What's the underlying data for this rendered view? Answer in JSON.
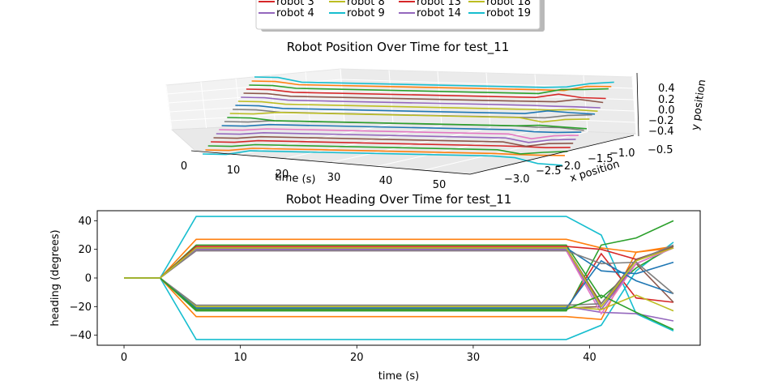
{
  "legend": {
    "entries": [
      {
        "label": "robot 3",
        "color": "#d62728"
      },
      {
        "label": "robot 8",
        "color": "#bcbd22"
      },
      {
        "label": "robot 13",
        "color": "#d62728"
      },
      {
        "label": "robot 18",
        "color": "#bcbd22"
      },
      {
        "label": "robot 4",
        "color": "#9467bd"
      },
      {
        "label": "robot 9",
        "color": "#17becf"
      },
      {
        "label": "robot 14",
        "color": "#9467bd"
      },
      {
        "label": "robot 19",
        "color": "#17becf"
      }
    ]
  },
  "chart_data": [
    {
      "type": "line",
      "projection": "3d",
      "title": "Robot Position Over Time for test_11",
      "xlabel": "time (s)",
      "ylabel": "x position",
      "zlabel": "y position",
      "time_ticks": [
        "0",
        "10",
        "20",
        "30",
        "40",
        "50"
      ],
      "x_ticks": [
        "−3.0",
        "−2.5",
        "−2.0",
        "−1.5",
        "−1.0",
        "−0.5"
      ],
      "z_ticks": [
        "−0.4",
        "−0.2",
        "0.0",
        "0.2",
        "0.4"
      ],
      "grid": true
    },
    {
      "type": "line",
      "title": "Robot Heading Over Time for test_11",
      "xlabel": "time (s)",
      "ylabel": "heading (degrees)",
      "xlim": [
        -2.3,
        49.5
      ],
      "ylim": [
        -47,
        47
      ],
      "xticks": [
        0,
        10,
        20,
        30,
        40
      ],
      "yticks": [
        -40,
        -20,
        0,
        20,
        40
      ],
      "series": [
        {
          "color": "#17becf",
          "x": [
            0,
            3.1,
            6.2,
            38,
            41,
            44,
            47.2
          ],
          "y": [
            0,
            0,
            43,
            43,
            30,
            -25,
            -37
          ]
        },
        {
          "color": "#17becf",
          "x": [
            0,
            3.1,
            6.2,
            38,
            41,
            44,
            47.2
          ],
          "y": [
            0,
            0,
            -43,
            -43,
            -33,
            5,
            25
          ]
        },
        {
          "color": "#ff7f0e",
          "x": [
            0,
            3.1,
            6.2,
            38,
            41,
            44,
            47.2
          ],
          "y": [
            0,
            0,
            27,
            27,
            21,
            18,
            21
          ]
        },
        {
          "color": "#ff7f0e",
          "x": [
            0,
            3.1,
            6.2,
            38,
            41,
            44,
            47.2
          ],
          "y": [
            0,
            0,
            -27,
            -27,
            -29,
            18,
            22
          ]
        },
        {
          "color": "#2ca02c",
          "x": [
            0,
            3.1,
            6.2,
            38,
            41,
            44,
            47.2
          ],
          "y": [
            0,
            0,
            23,
            23,
            -14,
            7,
            22
          ]
        },
        {
          "color": "#2ca02c",
          "x": [
            0,
            3.1,
            6.2,
            38,
            41,
            44,
            47.2
          ],
          "y": [
            0,
            0,
            -23,
            -23,
            23,
            28,
            40
          ]
        },
        {
          "color": "#d62728",
          "x": [
            0,
            3.1,
            6.2,
            38,
            41,
            44,
            47.2
          ],
          "y": [
            0,
            0,
            22,
            22,
            20,
            13,
            21
          ]
        },
        {
          "color": "#d62728",
          "x": [
            0,
            3.1,
            6.2,
            38,
            41,
            44,
            47.2
          ],
          "y": [
            0,
            0,
            -22,
            -22,
            17,
            -14,
            -17
          ]
        },
        {
          "color": "#8c564b",
          "x": [
            0,
            3.1,
            6.2,
            38,
            41,
            44,
            47.2
          ],
          "y": [
            0,
            0,
            21,
            21,
            -18,
            13,
            22
          ]
        },
        {
          "color": "#8c564b",
          "x": [
            0,
            3.1,
            6.2,
            38,
            41,
            44,
            47.2
          ],
          "y": [
            0,
            0,
            -21,
            -21,
            -20,
            10,
            -17
          ]
        },
        {
          "color": "#9467bd",
          "x": [
            0,
            3.1,
            6.2,
            38,
            41,
            44,
            47.2
          ],
          "y": [
            0,
            0,
            20,
            20,
            -22,
            10,
            21
          ]
        },
        {
          "color": "#9467bd",
          "x": [
            0,
            3.1,
            6.2,
            38,
            41,
            44,
            47.2
          ],
          "y": [
            0,
            0,
            -20,
            -20,
            -24,
            -25,
            -30
          ]
        },
        {
          "color": "#e377c2",
          "x": [
            0,
            3.1,
            6.2,
            38,
            41,
            44,
            47.2
          ],
          "y": [
            0,
            0,
            19,
            19,
            -25,
            10,
            21
          ]
        },
        {
          "color": "#bcbd22",
          "x": [
            0,
            3.1,
            6.2,
            38,
            41,
            44,
            47.2
          ],
          "y": [
            0,
            0,
            -20,
            -20,
            -22,
            -12,
            -23
          ]
        },
        {
          "color": "#1f77b4",
          "x": [
            0,
            3.1,
            6.2,
            38,
            41,
            44,
            47.2
          ],
          "y": [
            0,
            0,
            21,
            21,
            5,
            3,
            11
          ]
        },
        {
          "color": "#1f77b4",
          "x": [
            0,
            3.1,
            6.2,
            38,
            41,
            44,
            47.2
          ],
          "y": [
            0,
            0,
            -21,
            -21,
            12,
            -2,
            -11
          ]
        },
        {
          "color": "#7f7f7f",
          "x": [
            0,
            3.1,
            6.2,
            38,
            41,
            44,
            47.2
          ],
          "y": [
            0,
            0,
            19,
            19,
            10,
            11,
            -11
          ]
        },
        {
          "color": "#7f7f7f",
          "x": [
            0,
            3.1,
            6.2,
            38,
            41,
            44,
            47.2
          ],
          "y": [
            0,
            0,
            -19,
            -19,
            -18,
            12,
            23
          ]
        },
        {
          "color": "#2ca02c",
          "x": [
            0,
            3.1,
            6.2,
            38,
            41,
            44,
            47.2
          ],
          "y": [
            0,
            0,
            -22,
            -22,
            -12,
            -24,
            -36
          ]
        },
        {
          "color": "#bcbd22",
          "x": [
            0,
            3.1,
            6.2,
            38,
            41,
            44,
            47.2
          ],
          "y": [
            0,
            0,
            21,
            21,
            -20,
            12,
            21
          ]
        }
      ]
    }
  ]
}
